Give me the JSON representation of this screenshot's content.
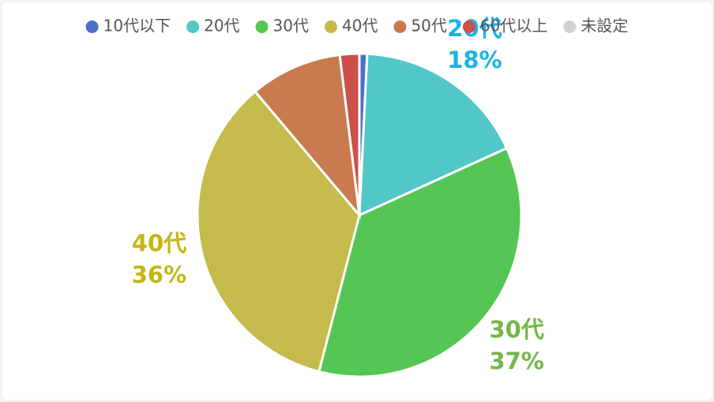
{
  "chart_data": {
    "type": "pie",
    "categories": [
      "10代以下",
      "20代",
      "30代",
      "40代",
      "50代",
      "60代以上",
      "未設定"
    ],
    "values": [
      0.8,
      18,
      37,
      36,
      9.5,
      2,
      0
    ],
    "value_labels": [
      null,
      "18%",
      "37%",
      "36%",
      null,
      null,
      null
    ],
    "colors": [
      "#4a72c9",
      "#52c7c7",
      "#55c653",
      "#c5ba4c",
      "#c97b4f",
      "#cd4f4a",
      "#d3d3d3"
    ],
    "label_colors": [
      null,
      "#1bb3e8",
      "#77b54a",
      "#c4b613",
      null,
      null,
      null
    ]
  }
}
